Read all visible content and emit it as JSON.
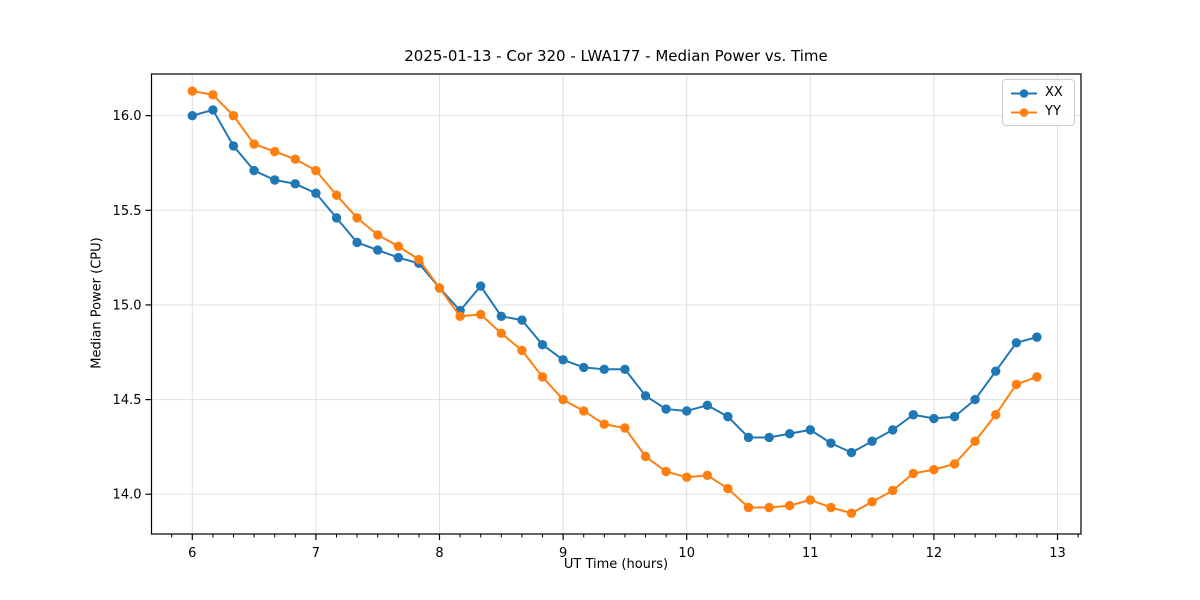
{
  "chart_data": {
    "type": "line",
    "title": "2025-01-13 - Cor 320 - LWA177 - Median Power vs. Time",
    "xlabel": "UT Time (hours)",
    "ylabel": "Median Power (CPU)",
    "xlim": [
      5.67,
      13.19
    ],
    "ylim": [
      13.79,
      16.22
    ],
    "grid": true,
    "legend_position": "upper right",
    "background_color": "#ffffff",
    "grid_color": "#e0e0e0",
    "x": [
      6.0,
      6.167,
      6.333,
      6.5,
      6.667,
      6.833,
      7.0,
      7.167,
      7.333,
      7.5,
      7.667,
      7.833,
      8.0,
      8.167,
      8.333,
      8.5,
      8.667,
      8.833,
      9.0,
      9.167,
      9.333,
      9.5,
      9.667,
      9.833,
      10.0,
      10.167,
      10.333,
      10.5,
      10.667,
      10.833,
      11.0,
      11.167,
      11.333,
      11.5,
      11.667,
      11.833,
      12.0,
      12.167,
      12.333,
      12.5,
      12.667,
      12.833
    ],
    "series": [
      {
        "name": "XX",
        "color": "#1f77b4",
        "values": [
          16.0,
          16.03,
          15.84,
          15.71,
          15.66,
          15.64,
          15.59,
          15.46,
          15.33,
          15.29,
          15.25,
          15.22,
          15.09,
          14.97,
          15.1,
          14.94,
          14.92,
          14.79,
          14.71,
          14.67,
          14.66,
          14.66,
          14.52,
          14.45,
          14.44,
          14.47,
          14.41,
          14.3,
          14.3,
          14.32,
          14.34,
          14.27,
          14.22,
          14.28,
          14.34,
          14.42,
          14.4,
          14.41,
          14.5,
          14.65,
          14.8,
          14.83
        ]
      },
      {
        "name": "YY",
        "color": "#ff7f0e",
        "values": [
          16.13,
          16.11,
          16.0,
          15.85,
          15.81,
          15.77,
          15.71,
          15.58,
          15.46,
          15.37,
          15.31,
          15.24,
          15.09,
          14.94,
          14.95,
          14.85,
          14.76,
          14.62,
          14.5,
          14.44,
          14.37,
          14.35,
          14.2,
          14.12,
          14.09,
          14.1,
          14.03,
          13.93,
          13.93,
          13.94,
          13.97,
          13.93,
          13.9,
          13.96,
          14.02,
          14.11,
          14.13,
          14.16,
          14.28,
          14.42,
          14.58,
          14.62
        ]
      }
    ],
    "xticks": {
      "values": [
        6,
        7,
        8,
        9,
        10,
        11,
        12,
        13
      ],
      "labels": [
        "6",
        "7",
        "8",
        "9",
        "10",
        "11",
        "12",
        "13"
      ],
      "minor_step": 0.16667
    },
    "yticks": {
      "values": [
        14.0,
        14.5,
        15.0,
        15.5,
        16.0
      ],
      "labels": [
        "14.0",
        "14.5",
        "15.0",
        "15.5",
        "16.0"
      ]
    }
  }
}
